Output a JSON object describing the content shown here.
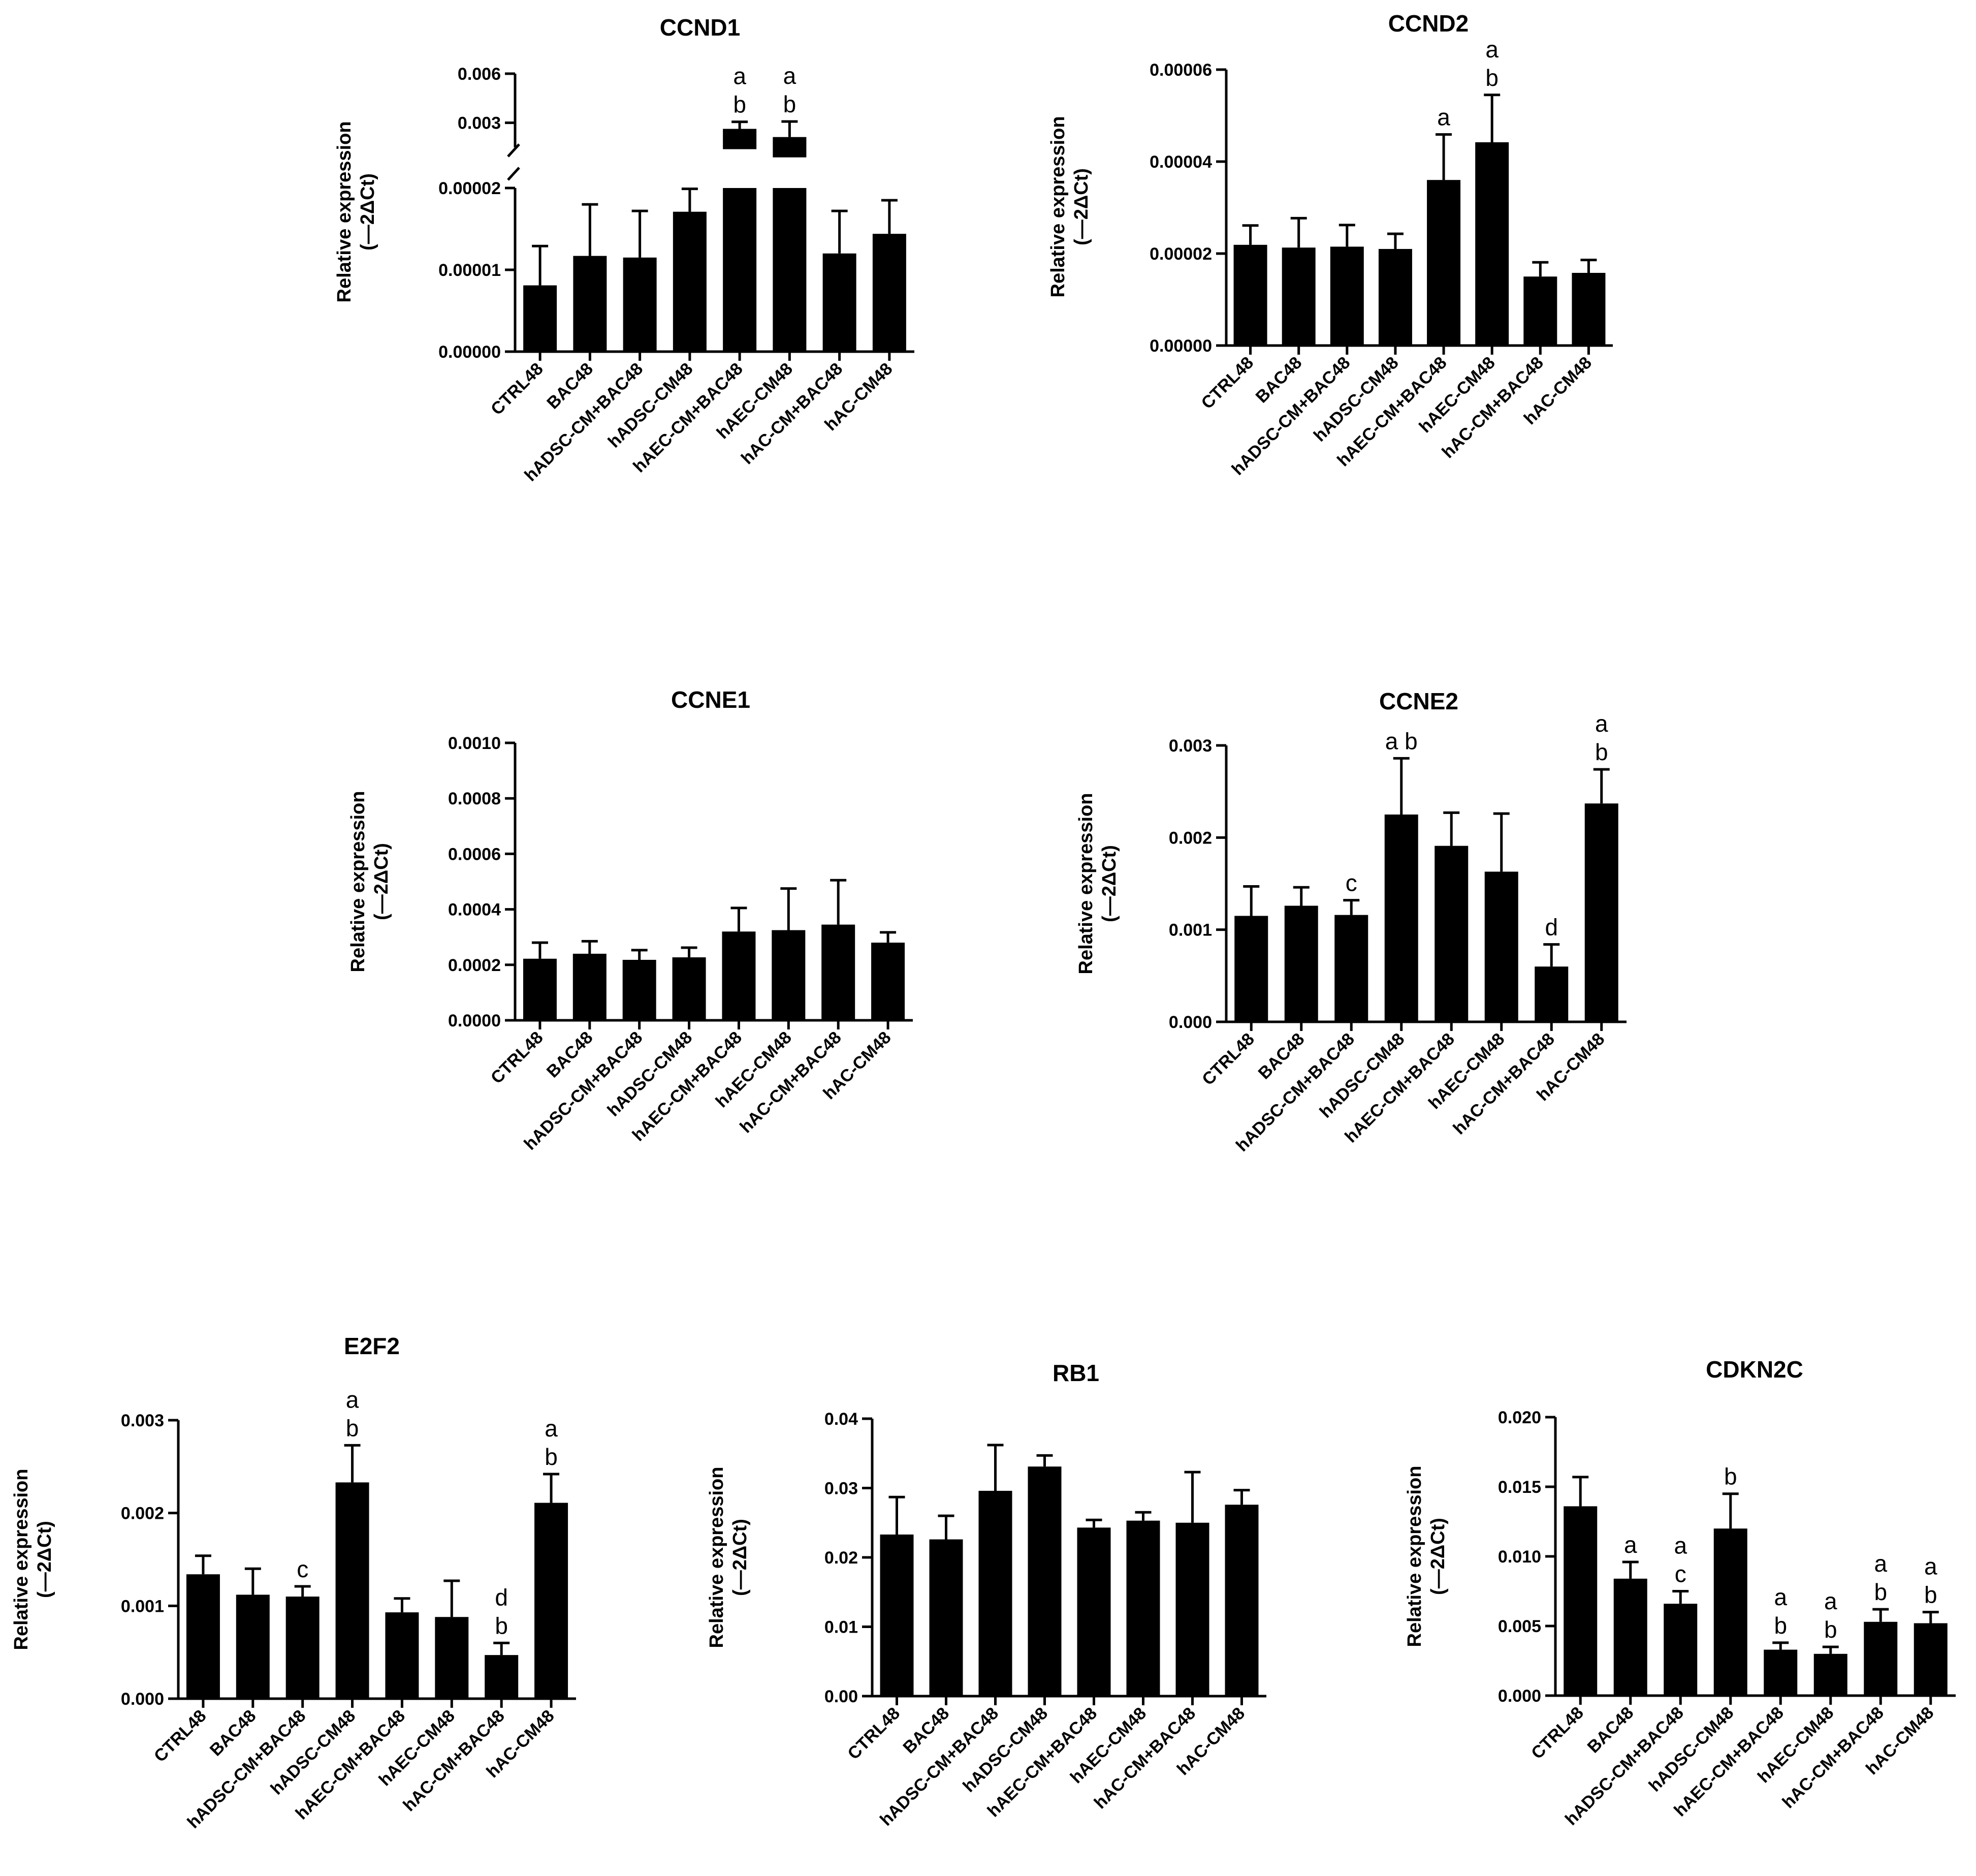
{
  "chart_data": [
    {
      "type": "bar",
      "title": "CCND1",
      "ylabel": [
        "Relative expression",
        "(—2ΔCt)"
      ],
      "categories": [
        "CTRL48",
        "BAC48",
        "hADSC-CM+BAC48",
        "hADSC-CM48",
        "hAEC-CM+BAC48",
        "hAEC-CM48",
        "hAC-CM+BAC48",
        "hAC-CM48"
      ],
      "values": [
        8.1e-06,
        1.17e-05,
        1.15e-05,
        1.71e-05,
        0.00263,
        0.00213,
        1.2e-05,
        1.44e-05
      ],
      "errors": [
        4.8e-06,
        6.3e-06,
        5.7e-06,
        2.8e-06,
        0.00043,
        0.00095,
        5.2e-06,
        4.1e-06
      ],
      "significance": [
        "",
        "",
        "",
        "",
        "a\nb",
        "a\nb",
        "",
        ""
      ],
      "broken_axis": {
        "lower": [
          0,
          2e-05
        ],
        "upper": [
          0.0015,
          0.006
        ]
      },
      "yticks_lower": [
        "0.00000",
        "0.00001",
        "0.00002"
      ],
      "yticks_upper": [
        "0.003",
        "0.006"
      ]
    },
    {
      "type": "bar",
      "title": "CCND2",
      "ylabel": [
        "Relative expression",
        "(—2ΔCt)"
      ],
      "categories": [
        "CTRL48",
        "BAC48",
        "hADSC-CM+BAC48",
        "hADSC-CM48",
        "hAEC-CM+BAC48",
        "hAEC-CM48",
        "hAC-CM+BAC48",
        "hAC-CM48"
      ],
      "values": [
        2.19e-05,
        2.13e-05,
        2.15e-05,
        2.1e-05,
        3.6e-05,
        4.42e-05,
        1.5e-05,
        1.58e-05
      ],
      "errors": [
        4.2e-06,
        6.4e-06,
        4.7e-06,
        3.3e-06,
        9.9e-06,
        1.03e-05,
        3.1e-06,
        2.8e-06
      ],
      "significance": [
        "",
        "",
        "",
        "",
        "a",
        "a\nb",
        "",
        ""
      ],
      "ylim": [
        0,
        6e-05
      ],
      "yticks": [
        "0.00000",
        "0.00002",
        "0.00004",
        "0.00006"
      ]
    },
    {
      "type": "bar",
      "title": "CCNE1",
      "ylabel": [
        "Relative expression",
        "(—2ΔCt)"
      ],
      "categories": [
        "CTRL48",
        "BAC48",
        "hADSC-CM+BAC48",
        "hADSC-CM48",
        "hAEC-CM+BAC48",
        "hAEC-CM48",
        "hAC-CM+BAC48",
        "hAC-CM48"
      ],
      "values": [
        0.000222,
        0.00024,
        0.000218,
        0.000227,
        0.00032,
        0.000325,
        0.000345,
        0.00028
      ],
      "errors": [
        5.8e-05,
        4.5e-05,
        3.5e-05,
        3.5e-05,
        8.5e-05,
        0.00015,
        0.00016,
        3.7e-05
      ],
      "significance": [
        "",
        "",
        "",
        "",
        "",
        "",
        "",
        ""
      ],
      "ylim": [
        0,
        0.001
      ],
      "yticks": [
        "0.0000",
        "0.0002",
        "0.0004",
        "0.0006",
        "0.0008",
        "0.0010"
      ]
    },
    {
      "type": "bar",
      "title": "CCNE2",
      "ylabel": [
        "Relative expression",
        "(—2ΔCt)"
      ],
      "categories": [
        "CTRL48",
        "BAC48",
        "hADSC-CM+BAC48",
        "hADSC-CM48",
        "hAEC-CM+BAC48",
        "hAEC-CM48",
        "hAC-CM+BAC48",
        "hAC-CM48"
      ],
      "values": [
        0.00115,
        0.00126,
        0.00116,
        0.00225,
        0.00191,
        0.00163,
        0.0006,
        0.00237
      ],
      "errors": [
        0.00032,
        0.0002,
        0.00016,
        0.00061,
        0.00036,
        0.00063,
        0.00024,
        0.00037
      ],
      "significance": [
        "",
        "",
        "c",
        "a b",
        "",
        "",
        "d",
        "a\nb"
      ],
      "ylim": [
        0,
        0.003
      ],
      "yticks": [
        "0.000",
        "0.001",
        "0.002",
        "0.003"
      ]
    },
    {
      "type": "bar",
      "title": "E2F2",
      "ylabel": [
        "Relative expression",
        "(—2ΔCt)"
      ],
      "categories": [
        "CTRL48",
        "BAC48",
        "hADSC-CM+BAC48",
        "hADSC-CM48",
        "hAEC-CM+BAC48",
        "hAEC-CM48",
        "hAC-CM+BAC48",
        "hAC-CM48"
      ],
      "values": [
        0.00134,
        0.00112,
        0.0011,
        0.00233,
        0.00093,
        0.00088,
        0.00047,
        0.00211
      ],
      "errors": [
        0.0002,
        0.00028,
        0.00011,
        0.0004,
        0.00015,
        0.00039,
        0.00013,
        0.00031
      ],
      "significance": [
        "",
        "",
        "c",
        "a\nb",
        "",
        "",
        "d\nb",
        "a\nb"
      ],
      "ylim": [
        0,
        0.003
      ],
      "yticks": [
        "0.000",
        "0.001",
        "0.002",
        "0.003"
      ]
    },
    {
      "type": "bar",
      "title": "RB1",
      "ylabel": [
        "Relative expression",
        "(—2ΔCt)"
      ],
      "categories": [
        "CTRL48",
        "BAC48",
        "hADSC-CM+BAC48",
        "hADSC-CM48",
        "hAEC-CM+BAC48",
        "hAEC-CM48",
        "hAC-CM+BAC48",
        "hAC-CM48"
      ],
      "values": [
        0.0233,
        0.0226,
        0.0296,
        0.0331,
        0.0243,
        0.0253,
        0.025,
        0.0276
      ],
      "errors": [
        0.0054,
        0.0034,
        0.0066,
        0.0016,
        0.0011,
        0.0012,
        0.0073,
        0.0021
      ],
      "significance": [
        "",
        "",
        "",
        "",
        "",
        "",
        "",
        ""
      ],
      "ylim": [
        0,
        0.04
      ],
      "yticks": [
        "0.00",
        "0.01",
        "0.02",
        "0.03",
        "0.04"
      ]
    },
    {
      "type": "bar",
      "title": "CDKN2C",
      "ylabel": [
        "Relative expression",
        "(—2ΔCt)"
      ],
      "categories": [
        "CTRL48",
        "BAC48",
        "hADSC-CM+BAC48",
        "hADSC-CM48",
        "hAEC-CM+BAC48",
        "hAEC-CM48",
        "hAC-CM+BAC48",
        "hAC-CM48"
      ],
      "values": [
        0.0136,
        0.0084,
        0.0066,
        0.012,
        0.0033,
        0.003,
        0.0053,
        0.0052
      ],
      "errors": [
        0.0021,
        0.0012,
        0.0009,
        0.0025,
        0.0005,
        0.0005,
        0.0009,
        0.0008
      ],
      "significance": [
        "",
        "a",
        "a\nc",
        "b",
        "a\nb",
        "a\nb",
        "a\nb",
        "a\nb"
      ],
      "ylim": [
        0,
        0.02
      ],
      "yticks": [
        "0.000",
        "0.005",
        "0.010",
        "0.015",
        "0.020"
      ]
    }
  ]
}
